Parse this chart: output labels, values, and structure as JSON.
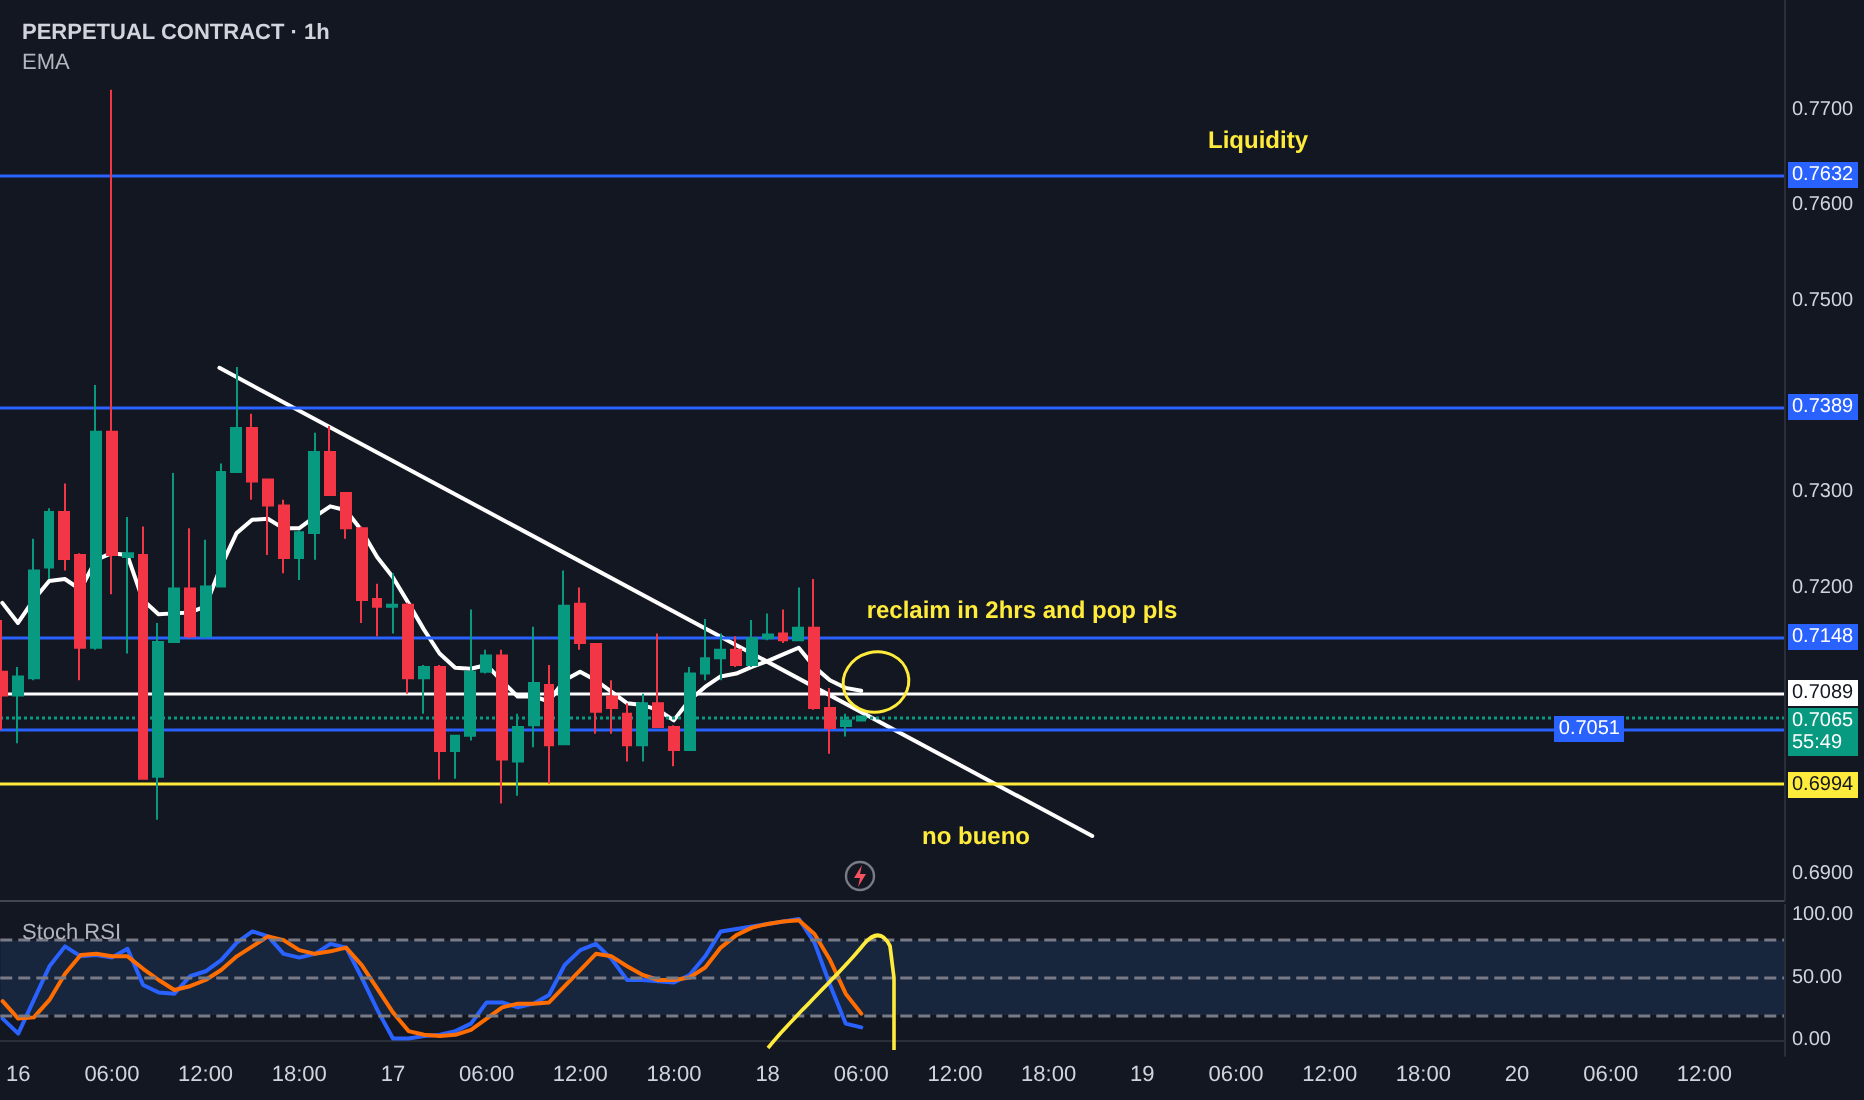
{
  "chart_data": [
    {
      "type": "candlestick",
      "title": "PERPETUAL CONTRACT · 1h",
      "subtitle": "EMA",
      "x": [
        "--12-15T23:00",
        "--12-16T00:00",
        "--12-16T01:00",
        "--12-16T02:00",
        "--12-16T03:00",
        "--12-16T04:00",
        "--12-16T05:00",
        "--12-16T06:00",
        "--12-16T07:00",
        "--12-16T08:00",
        "--12-16T09:00",
        "--12-16T10:00",
        "--12-16T11:00",
        "--12-16T12:00",
        "--12-16T13:00",
        "--12-16T14:00",
        "--12-16T15:00",
        "--12-16T16:00",
        "--12-16T17:00",
        "--12-16T18:00",
        "--12-16T19:00",
        "--12-16T20:00",
        "--12-16T21:00",
        "--12-16T22:00",
        "--12-16T23:00",
        "--12-17T00:00",
        "--12-17T01:00",
        "--12-17T02:00",
        "--12-17T03:00",
        "--12-17T04:00",
        "--12-17T05:00",
        "--12-17T06:00",
        "--12-17T07:00",
        "--12-17T08:00",
        "--12-17T09:00",
        "--12-17T10:00",
        "--12-17T11:00",
        "--12-17T12:00",
        "--12-17T13:00",
        "--12-17T14:00",
        "--12-17T15:00",
        "--12-17T16:00",
        "--12-17T17:00",
        "--12-17T18:00",
        "--12-17T19:00",
        "--12-17T20:00",
        "--12-17T21:00",
        "--12-17T22:00",
        "--12-17T23:00",
        "--12-18T00:00",
        "--12-18T01:00",
        "--12-18T02:00",
        "--12-18T03:00",
        "--12-18T04:00",
        "--12-18T05:00",
        "--12-18T06:00"
      ],
      "ohlc": [
        [
          0.7112,
          0.7166,
          0.7051,
          0.7087
        ],
        [
          0.7087,
          0.7117,
          0.7037,
          0.7107
        ],
        [
          0.7105,
          0.7251,
          0.7103,
          0.7218
        ],
        [
          0.7221,
          0.7283,
          0.7209,
          0.7279
        ],
        [
          0.7279,
          0.7309,
          0.7218,
          0.723
        ],
        [
          0.7234,
          0.7236,
          0.7103,
          0.7137
        ],
        [
          0.7137,
          0.7412,
          0.7135,
          0.7363
        ],
        [
          0.7363,
          0.7721,
          0.7193,
          0.7234
        ],
        [
          0.7232,
          0.7274,
          0.7131,
          0.7236
        ],
        [
          0.7234,
          0.7264,
          0.6999,
          0.7
        ],
        [
          0.7002,
          0.7163,
          0.6957,
          0.7143
        ],
        [
          0.7143,
          0.732,
          0.7142,
          0.7199
        ],
        [
          0.7199,
          0.7262,
          0.7147,
          0.7149
        ],
        [
          0.7149,
          0.725,
          0.7147,
          0.7201
        ],
        [
          0.7201,
          0.733,
          0.72,
          0.7321
        ],
        [
          0.7321,
          0.7431,
          0.732,
          0.7367
        ],
        [
          0.7367,
          0.7382,
          0.7292,
          0.7311
        ],
        [
          0.7313,
          0.7314,
          0.7234,
          0.7286
        ],
        [
          0.7286,
          0.7292,
          0.7215,
          0.7231
        ],
        [
          0.7231,
          0.726,
          0.7208,
          0.7258
        ],
        [
          0.7257,
          0.7362,
          0.7229,
          0.7342
        ],
        [
          0.7342,
          0.7369,
          0.7296,
          0.7297
        ],
        [
          0.7299,
          0.73,
          0.7251,
          0.7262
        ],
        [
          0.7262,
          0.7264,
          0.7163,
          0.7187
        ],
        [
          0.7188,
          0.7204,
          0.7149,
          0.718
        ],
        [
          0.718,
          0.7215,
          0.7152,
          0.7182
        ],
        [
          0.7182,
          0.7184,
          0.7089,
          0.7105
        ],
        [
          0.7105,
          0.7119,
          0.7068,
          0.7117
        ],
        [
          0.7117,
          0.7119,
          0.6999,
          0.7029
        ],
        [
          0.7029,
          0.7046,
          0.7,
          0.7045
        ],
        [
          0.7045,
          0.7177,
          0.704,
          0.7112
        ],
        [
          0.7112,
          0.7135,
          0.711,
          0.7129
        ],
        [
          0.7129,
          0.7135,
          0.6974,
          0.702
        ],
        [
          0.7018,
          0.7068,
          0.6982,
          0.7054
        ],
        [
          0.7056,
          0.7159,
          0.7033,
          0.71
        ],
        [
          0.7098,
          0.7119,
          0.6995,
          0.7035
        ],
        [
          0.7036,
          0.7218,
          0.7035,
          0.7181
        ],
        [
          0.7183,
          0.72,
          0.7135,
          0.7142
        ],
        [
          0.7141,
          0.7142,
          0.7047,
          0.707
        ],
        [
          0.7086,
          0.7103,
          0.7047,
          0.7074
        ],
        [
          0.7068,
          0.7079,
          0.7018,
          0.7035
        ],
        [
          0.7035,
          0.7089,
          0.7018,
          0.7079
        ],
        [
          0.7079,
          0.7152,
          0.7053,
          0.7054
        ],
        [
          0.7054,
          0.7056,
          0.7013,
          0.703
        ],
        [
          0.703,
          0.7117,
          0.7029,
          0.711
        ],
        [
          0.711,
          0.7167,
          0.7103,
          0.7126
        ],
        [
          0.7126,
          0.7152,
          0.7103,
          0.7135
        ],
        [
          0.7135,
          0.7149,
          0.7117,
          0.7119
        ],
        [
          0.7119,
          0.7166,
          0.7117,
          0.7147
        ],
        [
          0.7147,
          0.7173,
          0.7145,
          0.7151
        ],
        [
          0.7152,
          0.7177,
          0.7142,
          0.7145
        ],
        [
          0.7145,
          0.72,
          0.7144,
          0.7158
        ],
        [
          0.7158,
          0.7209,
          0.7072,
          0.7074
        ],
        [
          0.7074,
          0.7095,
          0.7026,
          0.7053
        ],
        [
          0.7055,
          0.7068,
          0.7044,
          0.7061
        ],
        [
          0.7061,
          0.7066,
          0.706,
          0.7065
        ]
      ],
      "colors": [
        "#f23645",
        "#089981",
        "#089981",
        "#089981",
        "#f23645",
        "#f23645",
        "#089981",
        "#f23645",
        "#089981",
        "#f23645",
        "#089981",
        "#089981",
        "#f23645",
        "#089981",
        "#089981",
        "#089981",
        "#f23645",
        "#f23645",
        "#f23645",
        "#089981",
        "#089981",
        "#f23645",
        "#f23645",
        "#f23645",
        "#f23645",
        "#089981",
        "#f23645",
        "#089981",
        "#f23645",
        "#089981",
        "#089981",
        "#089981",
        "#f23645",
        "#089981",
        "#089981",
        "#f23645",
        "#089981",
        "#f23645",
        "#f23645",
        "#f23645",
        "#f23645",
        "#089981",
        "#f23645",
        "#f23645",
        "#089981",
        "#089981",
        "#089981",
        "#f23645",
        "#089981",
        "#089981",
        "#f23645",
        "#089981",
        "#f23645",
        "#f23645",
        "#089981",
        "#089981"
      ],
      "series": [
        {
          "type": "line",
          "color": "#ffffff",
          "values": [
            0.7184,
            0.7163,
            0.7187,
            0.7207,
            0.7209,
            0.7198,
            0.7229,
            0.7236,
            0.7234,
            0.7187,
            0.7172,
            0.7173,
            0.7174,
            0.718,
            0.7222,
            0.7257,
            0.7271,
            0.7272,
            0.7262,
            0.7262,
            0.7274,
            0.7285,
            0.7281,
            0.726,
            0.7232,
            0.7211,
            0.7184,
            0.7156,
            0.7131,
            0.7116,
            0.7115,
            0.7119,
            0.7102,
            0.7086,
            0.7086,
            0.7081,
            0.7103,
            0.7112,
            0.7103,
            0.7091,
            0.7079,
            0.7077,
            0.7072,
            0.7061,
            0.7082,
            0.7096,
            0.7107,
            0.711,
            0.7117,
            0.7123,
            0.713,
            0.7137,
            0.7117,
            0.7103,
            0.7095,
            0.7092
          ]
        },
        {
          "type": "line",
          "color": "#ffffff",
          "x": [
            "--12-16T12:54",
            "--12-18T20:48"
          ],
          "values": [
            0.743,
            0.694
          ]
        }
      ],
      "xlim": [
        "--12-15T22:51",
        "--12-20T17:06"
      ],
      "ylim": [
        0.6873,
        0.7815
      ],
      "yticks": [
        {
          "value": 0.69,
          "label": "0.6900"
        },
        {
          "value": 0.72,
          "label": "0.7200"
        },
        {
          "value": 0.73,
          "label": "0.7300"
        },
        {
          "value": 0.75,
          "label": "0.7500"
        },
        {
          "value": 0.76,
          "label": "0.7600"
        },
        {
          "value": 0.77,
          "label": "0.7700"
        }
      ],
      "tick_labels": "y",
      "marker": "none",
      "ref_lines": [
        {
          "axis": "y",
          "value": 0.7632,
          "label": "0.7632",
          "color": "#2962ff"
        },
        {
          "axis": "y",
          "value": 0.7389,
          "label": "0.7389",
          "color": "#2962ff"
        },
        {
          "axis": "y",
          "value": 0.7148,
          "label": "0.7148",
          "color": "#2962ff"
        },
        {
          "axis": "y",
          "value": 0.7089,
          "label": "0.7089",
          "color": "#ffffff"
        },
        {
          "axis": "y",
          "value": 0.7065,
          "label": "0.7065\n55:49",
          "color": "#089981",
          "line_style": "dotted"
        },
        {
          "axis": "y",
          "value": 0.7051,
          "label": "0.7051",
          "color": "#2962ff"
        },
        {
          "axis": "y",
          "value": 0.6994,
          "label": "0.6994",
          "color": "#ffeb3b"
        }
      ],
      "annotations": [
        "Liquidity",
        "reclaim in 2hrs and pop pls",
        "no bueno"
      ]
    },
    {
      "type": "line",
      "title": "Stoch RSI",
      "x": [
        "--12-15T23:00",
        "--12-16T00:00",
        "--12-16T01:00",
        "--12-16T02:00",
        "--12-16T03:00",
        "--12-16T04:00",
        "--12-16T05:00",
        "--12-16T06:00",
        "--12-16T07:00",
        "--12-16T08:00",
        "--12-16T09:00",
        "--12-16T10:00",
        "--12-16T11:00",
        "--12-16T12:00",
        "--12-16T13:00",
        "--12-16T14:00",
        "--12-16T15:00",
        "--12-16T16:00",
        "--12-16T17:00",
        "--12-16T18:00",
        "--12-16T19:00",
        "--12-16T20:00",
        "--12-16T21:00",
        "--12-16T22:00",
        "--12-16T23:00",
        "--12-17T00:00",
        "--12-17T01:00",
        "--12-17T02:00",
        "--12-17T03:00",
        "--12-17T04:00",
        "--12-17T05:00",
        "--12-17T06:00",
        "--12-17T07:00",
        "--12-17T08:00",
        "--12-17T09:00",
        "--12-17T10:00",
        "--12-17T11:00",
        "--12-17T12:00",
        "--12-17T13:00",
        "--12-17T14:00",
        "--12-17T15:00",
        "--12-17T16:00",
        "--12-17T17:00",
        "--12-17T18:00",
        "--12-17T19:00",
        "--12-17T20:00",
        "--12-17T21:00",
        "--12-17T22:00",
        "--12-17T23:00",
        "--12-18T00:00",
        "--12-18T01:00",
        "--12-18T02:00",
        "--12-18T03:00",
        "--12-18T04:00",
        "--12-18T05:00",
        "--12-18T06:00"
      ],
      "series": [
        {
          "color": "#2962ff",
          "values": [
            17,
            5,
            32,
            59,
            75,
            67,
            68,
            66,
            73,
            44,
            38,
            37,
            51,
            55,
            64,
            78,
            87,
            83,
            69,
            66,
            69,
            77,
            74,
            50,
            24,
            1,
            1,
            3,
            4,
            7,
            13,
            30,
            30,
            26,
            29,
            36,
            60,
            72,
            77,
            65,
            48,
            48,
            47,
            46,
            52,
            67,
            87,
            89,
            91,
            93,
            95,
            97,
            78,
            44,
            13,
            10
          ]
        },
        {
          "color": "#ff6d00",
          "values": [
            31,
            17,
            18,
            32,
            53,
            68,
            69,
            67,
            67,
            57,
            48,
            40,
            43,
            48,
            56,
            67,
            75,
            83,
            80,
            72,
            69,
            71,
            74,
            60,
            41,
            22,
            7,
            4,
            3,
            4,
            8,
            17,
            26,
            29,
            29,
            30,
            43,
            56,
            69,
            67,
            59,
            52,
            48,
            48,
            50,
            58,
            74,
            84,
            90,
            93,
            95,
            96,
            85,
            64,
            37,
            21
          ]
        }
      ],
      "xlim": [
        "--12-15T22:51",
        "--12-20T17:06"
      ],
      "xticks": [
        {
          "value": "--12-16T00:00",
          "label": "16"
        },
        {
          "value": "--12-16T06:00",
          "label": "06:00"
        },
        {
          "value": "--12-16T12:00",
          "label": "12:00"
        },
        {
          "value": "--12-16T18:00",
          "label": "18:00"
        },
        {
          "value": "--12-17T00:00",
          "label": "17"
        },
        {
          "value": "--12-17T06:00",
          "label": "06:00"
        },
        {
          "value": "--12-17T12:00",
          "label": "12:00"
        },
        {
          "value": "--12-17T18:00",
          "label": "18:00"
        },
        {
          "value": "--12-18T00:00",
          "label": "18"
        },
        {
          "value": "--12-18T06:00",
          "label": "06:00"
        },
        {
          "value": "--12-18T12:00",
          "label": "12:00"
        },
        {
          "value": "--12-18T18:00",
          "label": "18:00"
        },
        {
          "value": "--12-19T00:00",
          "label": "19"
        },
        {
          "value": "--12-19T06:00",
          "label": "06:00"
        },
        {
          "value": "--12-19T12:00",
          "label": "12:00"
        },
        {
          "value": "--12-19T18:00",
          "label": "18:00"
        },
        {
          "value": "--12-20T00:00",
          "label": "20"
        },
        {
          "value": "--12-20T06:00",
          "label": "06:00"
        },
        {
          "value": "--12-20T12:00",
          "label": "12:00"
        }
      ],
      "ylim": [
        -13,
        109
      ],
      "yticks": [
        {
          "value": 0,
          "label": "0.00"
        },
        {
          "value": 50,
          "label": "50.00"
        },
        {
          "value": 100,
          "label": "100.00"
        }
      ],
      "marker": "none",
      "ref_lines": [
        {
          "axis": "y",
          "value": 80,
          "color": "#787b86",
          "line_style": "dashed"
        },
        {
          "axis": "y",
          "value": 50,
          "color": "#787b86",
          "line_style": "dashed"
        },
        {
          "axis": "y",
          "value": 20,
          "color": "#787b86",
          "line_style": "dashed"
        }
      ],
      "bands": [
        {
          "axis": "y",
          "from": 20,
          "to": 80,
          "color": "#17253d"
        }
      ]
    }
  ]
}
